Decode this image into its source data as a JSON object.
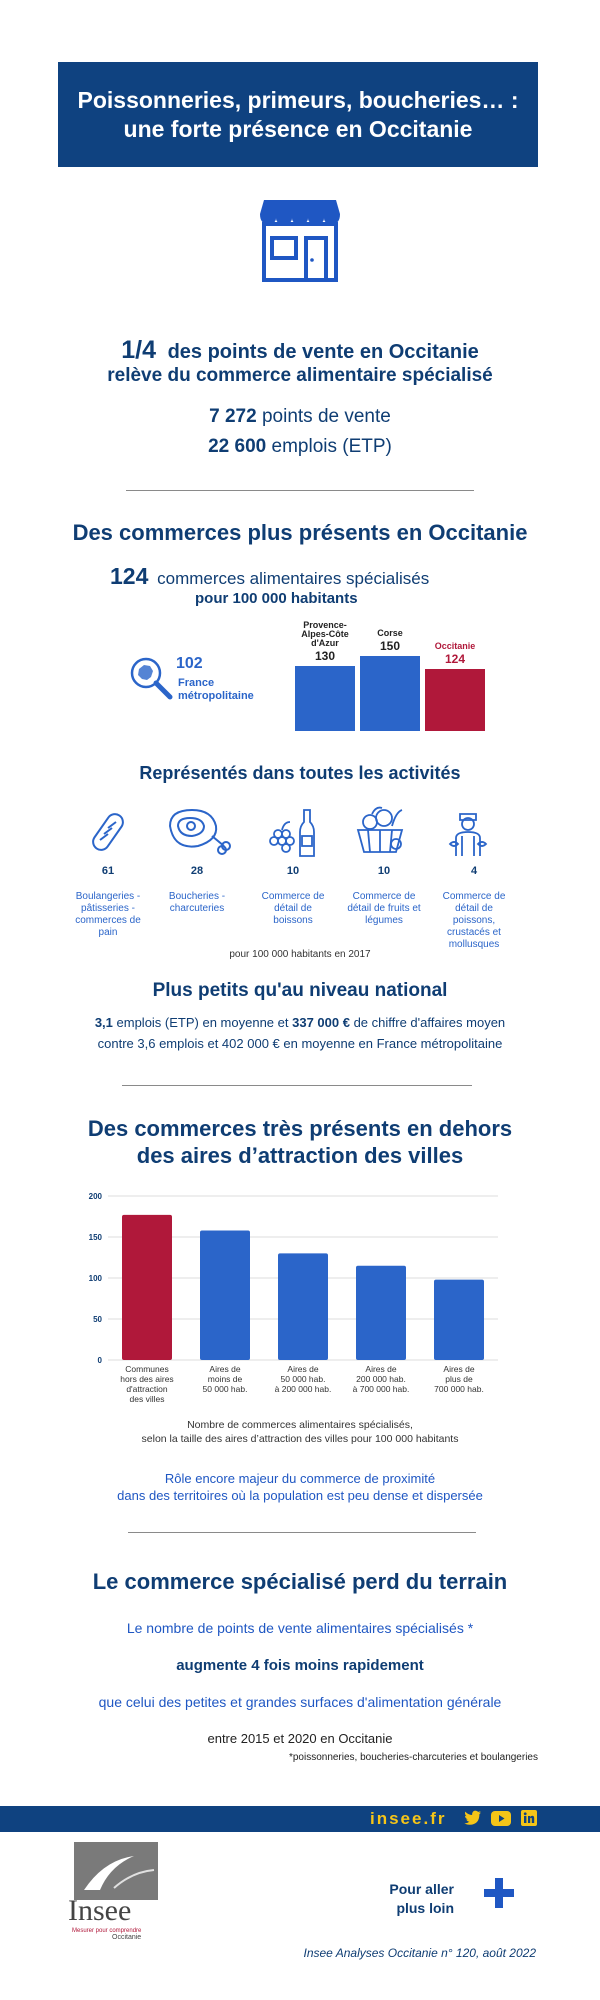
{
  "header": {
    "title_line1": "Poissonneries, primeurs, boucheries… :",
    "title_line2": "une forte présence en Occitanie"
  },
  "intro": {
    "fraction": "1/4",
    "line1": "des points de vente en Occitanie",
    "line2": "relève du commerce alimentaire spécialisé",
    "points_value": "7 272",
    "points_label": "points de vente",
    "jobs_value": "22 600",
    "jobs_label": "emplois (ETP)"
  },
  "density": {
    "heading": "Des commerces plus présents en Occitanie",
    "count": "124",
    "count_label": "commerces alimentaires spécialisés",
    "per_label": "pour 100 000 habitants",
    "france_value": "102",
    "france_label_1": "France",
    "france_label_2": "métropolitaine"
  },
  "region_chart": {
    "type": "bar",
    "categories": [
      "Provence-Alpes-Côte d'Azur",
      "Corse",
      "Occitanie"
    ],
    "label_lines": [
      [
        "Provence-",
        "Alpes-Côte",
        "d'Azur"
      ],
      [
        "Corse"
      ],
      [
        "Occitanie"
      ]
    ],
    "values": [
      130,
      150,
      124
    ],
    "colors": [
      "#2b65c9",
      "#2b65c9",
      "#b0183a"
    ]
  },
  "activities": {
    "heading": "Représentés dans toutes les activités",
    "items": [
      {
        "value": "61",
        "label": "Boulangeries - pâtisseries - commerces de pain",
        "icon": "bread-icon"
      },
      {
        "value": "28",
        "label": "Boucheries - charcuteries",
        "icon": "meat-icon"
      },
      {
        "value": "10",
        "label": "Commerce de détail de boissons",
        "icon": "wine-icon"
      },
      {
        "value": "10",
        "label": "Commerce de détail de fruits et légumes",
        "icon": "basket-icon"
      },
      {
        "value": "4",
        "label": "Commerce de détail de poissons, crustacés et mollusques",
        "icon": "fishmonger-icon"
      }
    ],
    "note": "pour 100 000 habitants en 2017"
  },
  "size": {
    "heading": "Plus petits qu'au niveau national",
    "jobs_value": "3,1",
    "line1_a": "emplois (ETP) en moyenne et",
    "revenue_value": "337 000 €",
    "line1_b": "de chiffre d'affaires moyen",
    "line2": "contre 3,6 emplois et 402 000 € en moyenne en France métropolitaine"
  },
  "attraction": {
    "heading_line1": "Des commerces très présents en dehors",
    "heading_line2": "des aires d’attraction des villes",
    "caption_line1": "Nombre de commerces alimentaires spécialisés,",
    "caption_line2": "selon la taille des aires d’attraction des villes pour 100 000 habitants",
    "note_line1": "Rôle encore majeur du commerce de proximité",
    "note_line2": "dans des territoires où la population est peu dense et dispersée"
  },
  "chart_data": {
    "type": "bar",
    "categories": [
      "Communes hors des aires d'attraction des villes",
      "Aires de moins de 50 000 hab.",
      "Aires de 50 000 hab. à 200 000 hab.",
      "Aires de 200 000 hab. à 700 000 hab.",
      "Aires de plus de 700 000 hab."
    ],
    "label_lines": [
      [
        "Communes",
        "hors des aires",
        "d'attraction",
        "des villes"
      ],
      [
        "Aires de",
        "moins de",
        "50 000 hab."
      ],
      [
        "Aires de",
        "50 000 hab.",
        "à 200 000 hab."
      ],
      [
        "Aires de",
        "200 000 hab.",
        "à 700 000 hab."
      ],
      [
        "Aires de",
        "plus de",
        "700 000 hab."
      ]
    ],
    "values": [
      177,
      158,
      130,
      115,
      98
    ],
    "colors": [
      "#b0183a",
      "#2b65c9",
      "#2b65c9",
      "#2b65c9",
      "#2b65c9"
    ],
    "yticks": [
      "0",
      "50",
      "100",
      "150",
      "200"
    ],
    "ylim": [
      0,
      200
    ],
    "grid": true
  },
  "decline": {
    "heading": "Le commerce spécialisé perd du terrain",
    "line1": "Le nombre de points de vente alimentaires spécialisés *",
    "line2": "augmente 4 fois moins rapidement",
    "line3": "que celui des petites et grandes surfaces d'alimentation générale",
    "line4": "entre 2015 et 2020 en Occitanie",
    "footnote": "*poissonneries, boucheries-charcuteries et boulangeries"
  },
  "footer": {
    "site": "insee.fr",
    "logo_text": "Insee",
    "logo_tagline": "Mesurer pour comprendre",
    "logo_region": "Occitanie",
    "more_line1": "Pour aller",
    "more_line2": "plus loin",
    "publication": "Insee Analyses Occitanie n° 120, août 2022"
  }
}
